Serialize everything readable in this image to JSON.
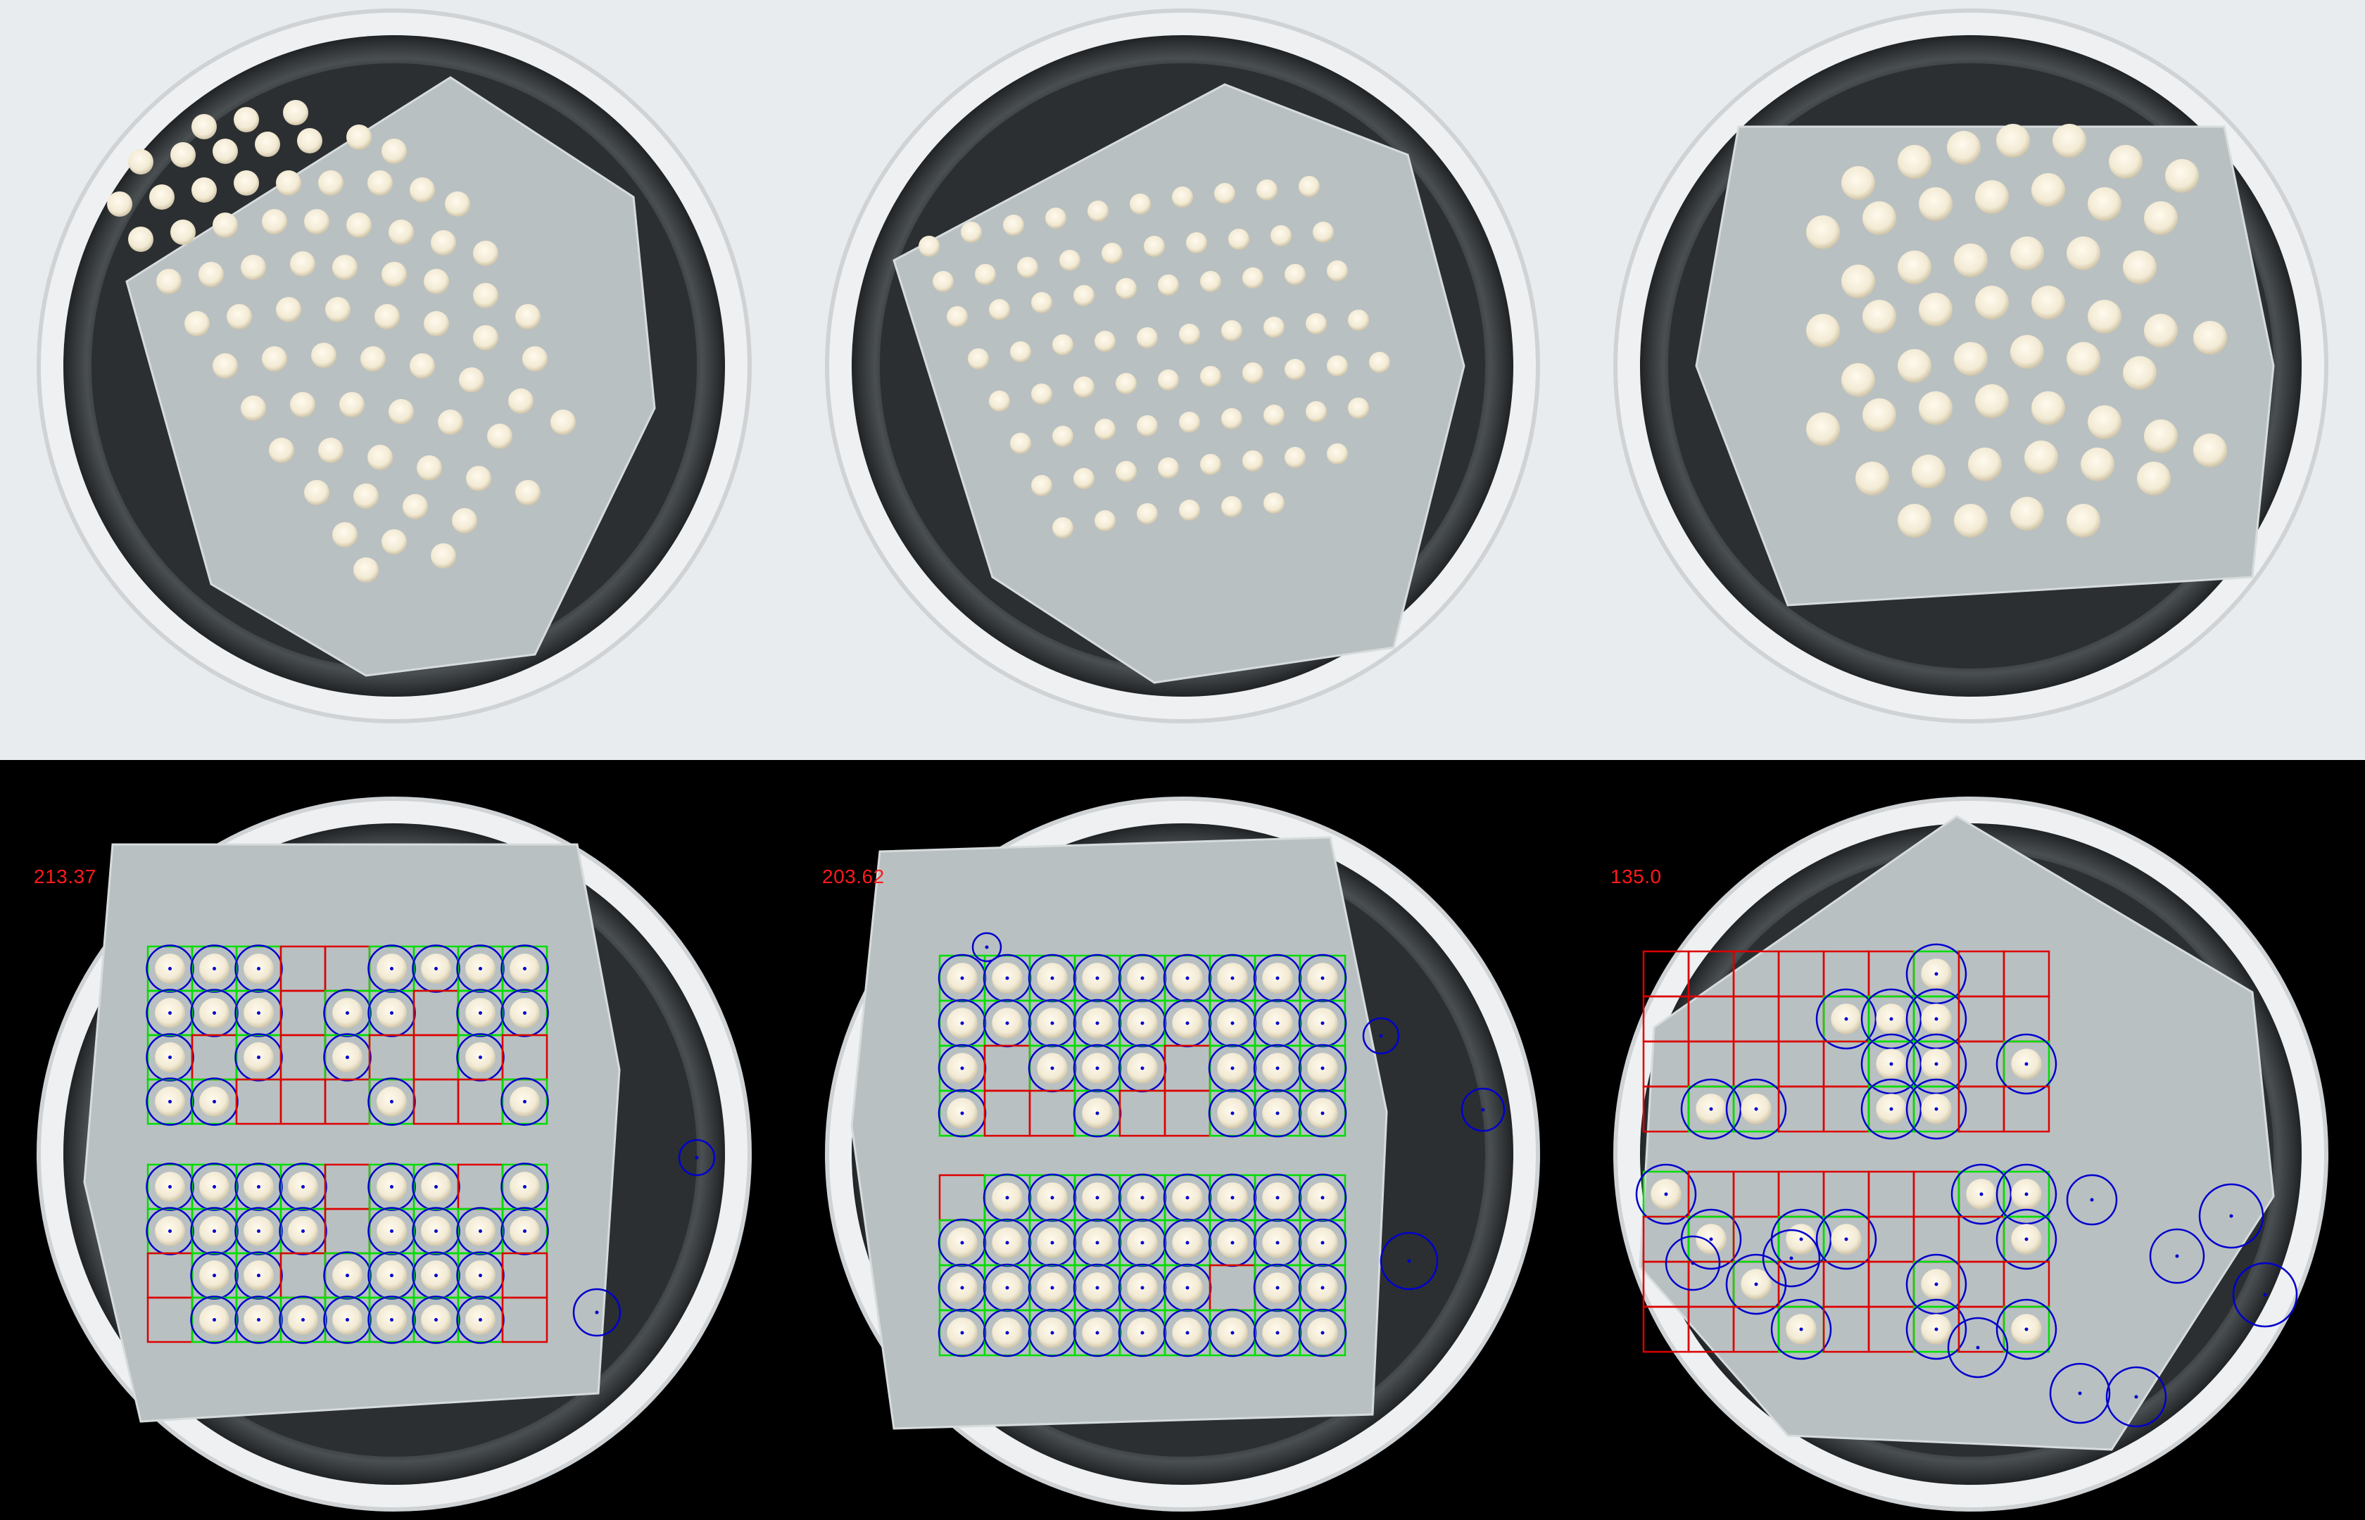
{
  "colors": {
    "detected_cell": "#00dd00",
    "empty_cell": "#dd0000",
    "colony_circle": "#0000cc",
    "angle_text": "#ff1a1a",
    "agar": "#b9c0c2",
    "colony": "#f2ead4",
    "background_light": "#e9ecee",
    "background_dark": "#000000"
  },
  "panels": [
    {
      "id": "top-1",
      "kind": "original"
    },
    {
      "id": "top-2",
      "kind": "original"
    },
    {
      "id": "top-3",
      "kind": "original"
    },
    {
      "id": "bottom-1",
      "kind": "annotated",
      "angle_label": "213.37"
    },
    {
      "id": "bottom-2",
      "kind": "annotated",
      "angle_label": "203.62"
    },
    {
      "id": "bottom-3",
      "kind": "annotated",
      "angle_label": "135.0"
    }
  ]
}
